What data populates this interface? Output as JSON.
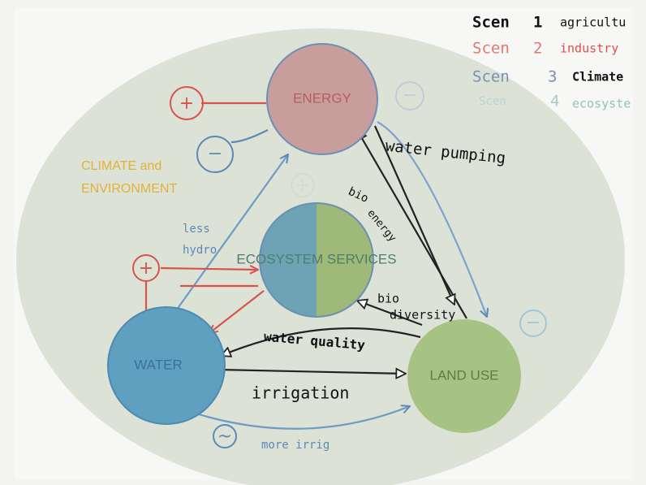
{
  "legend": [
    {
      "label": "Scen",
      "number": "1",
      "name": "agricultu"
    },
    {
      "label": "Scen",
      "number": "2",
      "name": "industry"
    },
    {
      "label": "Scen",
      "number": "3",
      "name": "Climate"
    },
    {
      "label": "Scen",
      "number": "4",
      "name": "ecosyste"
    }
  ],
  "nodes": [
    {
      "label": "ENERGY"
    },
    {
      "label": "ECOSYSTEM SERVICES"
    },
    {
      "label": "WATER"
    },
    {
      "label": "LAND USE"
    }
  ],
  "context": {
    "line1": "CLIMATE and",
    "line2": "ENVIRONMENT"
  },
  "links": [
    {
      "label": "water pumping"
    },
    {
      "line1": "bio",
      "line2": "energy"
    },
    {
      "line1": "less",
      "line2": "hydro"
    },
    {
      "line1": "bio",
      "line2": "diversity"
    },
    {
      "label": "water quality"
    },
    {
      "label": "irrigation"
    },
    {
      "label": "more irrig"
    }
  ],
  "signs": [
    "+",
    "−",
    "+",
    "~",
    "−",
    "+",
    "−"
  ]
}
